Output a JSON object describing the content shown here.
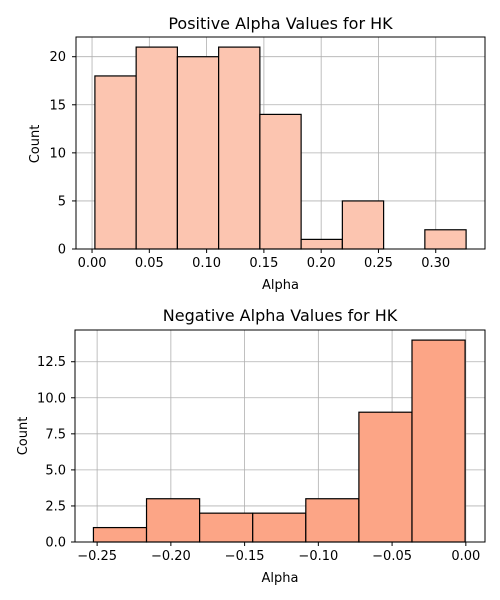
{
  "chart_data": [
    {
      "type": "bar",
      "title": "Positive Alpha Values for HK",
      "xlabel": "Alpha",
      "ylabel": "Count",
      "color": "#fcc5b0",
      "edgecolor": "#000000",
      "bin_edges": [
        0.0025,
        0.0385,
        0.0745,
        0.1105,
        0.1465,
        0.1825,
        0.2185,
        0.2545,
        0.2905,
        0.3265
      ],
      "values": [
        18,
        21,
        20,
        21,
        14,
        1,
        5,
        0,
        2
      ],
      "xlim": [
        -0.014,
        0.343
      ],
      "ylim": [
        0,
        22.05
      ],
      "xticks": [
        0.0,
        0.05,
        0.1,
        0.15,
        0.2,
        0.25,
        0.3
      ],
      "xtick_labels": [
        "0.00",
        "0.05",
        "0.10",
        "0.15",
        "0.20",
        "0.25",
        "0.30"
      ],
      "yticks": [
        0,
        5,
        10,
        15,
        20
      ],
      "ytick_labels": [
        "0",
        "5",
        "10",
        "15",
        "20"
      ],
      "grid": true
    },
    {
      "type": "bar",
      "title": "Negative Alpha Values for HK",
      "xlabel": "Alpha",
      "ylabel": "Count",
      "color": "#fca586",
      "edgecolor": "#000000",
      "bin_edges": [
        -0.2525,
        -0.2165,
        -0.1805,
        -0.1445,
        -0.1085,
        -0.0725,
        -0.0365,
        -0.0005
      ],
      "values": [
        1,
        3,
        2,
        2,
        3,
        9,
        14
      ],
      "xlim": [
        -0.265,
        0.013
      ],
      "ylim": [
        0,
        14.7
      ],
      "xticks": [
        -0.25,
        -0.2,
        -0.15,
        -0.1,
        -0.05,
        0.0
      ],
      "xtick_labels": [
        "−0.25",
        "−0.20",
        "−0.15",
        "−0.10",
        "−0.05",
        "0.00"
      ],
      "yticks": [
        0,
        2.5,
        5.0,
        7.5,
        10.0,
        12.5
      ],
      "ytick_labels": [
        "0.0",
        "2.5",
        "5.0",
        "7.5",
        "10.0",
        "12.5"
      ],
      "grid": true
    }
  ]
}
